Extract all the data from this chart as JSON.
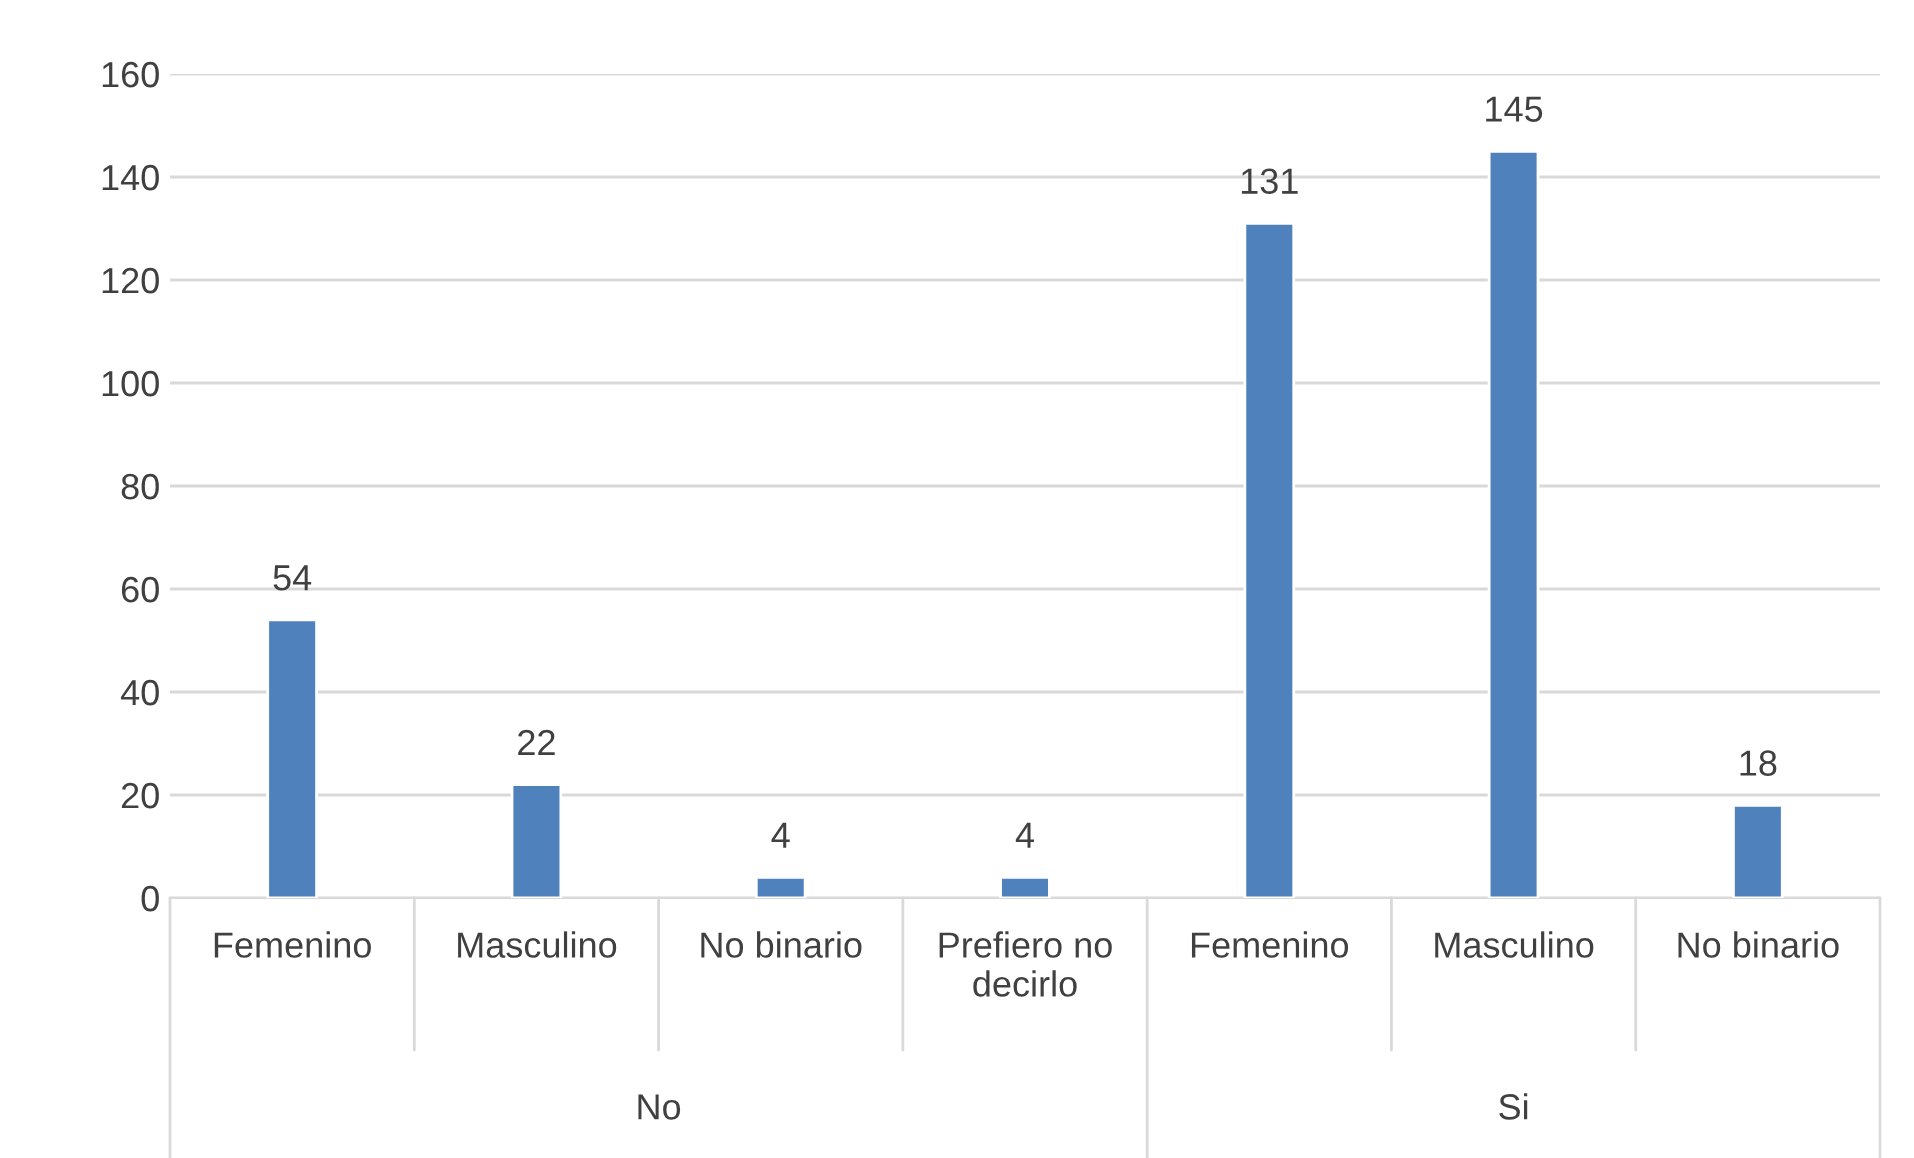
{
  "chart_data": {
    "type": "bar",
    "categories": [
      "Femenino",
      "Masculino",
      "No binario",
      "Prefiero no decirlo",
      "Femenino",
      "Masculino",
      "No binario"
    ],
    "values": [
      54,
      22,
      4,
      4,
      131,
      145,
      18
    ],
    "color": "#4f81bd",
    "data_labels": true,
    "ylim": [
      0,
      160
    ],
    "yticks": [
      0,
      20,
      40,
      60,
      80,
      100,
      120,
      140,
      160
    ],
    "grid": "y",
    "annotations": [
      "No",
      "Si"
    ]
  }
}
